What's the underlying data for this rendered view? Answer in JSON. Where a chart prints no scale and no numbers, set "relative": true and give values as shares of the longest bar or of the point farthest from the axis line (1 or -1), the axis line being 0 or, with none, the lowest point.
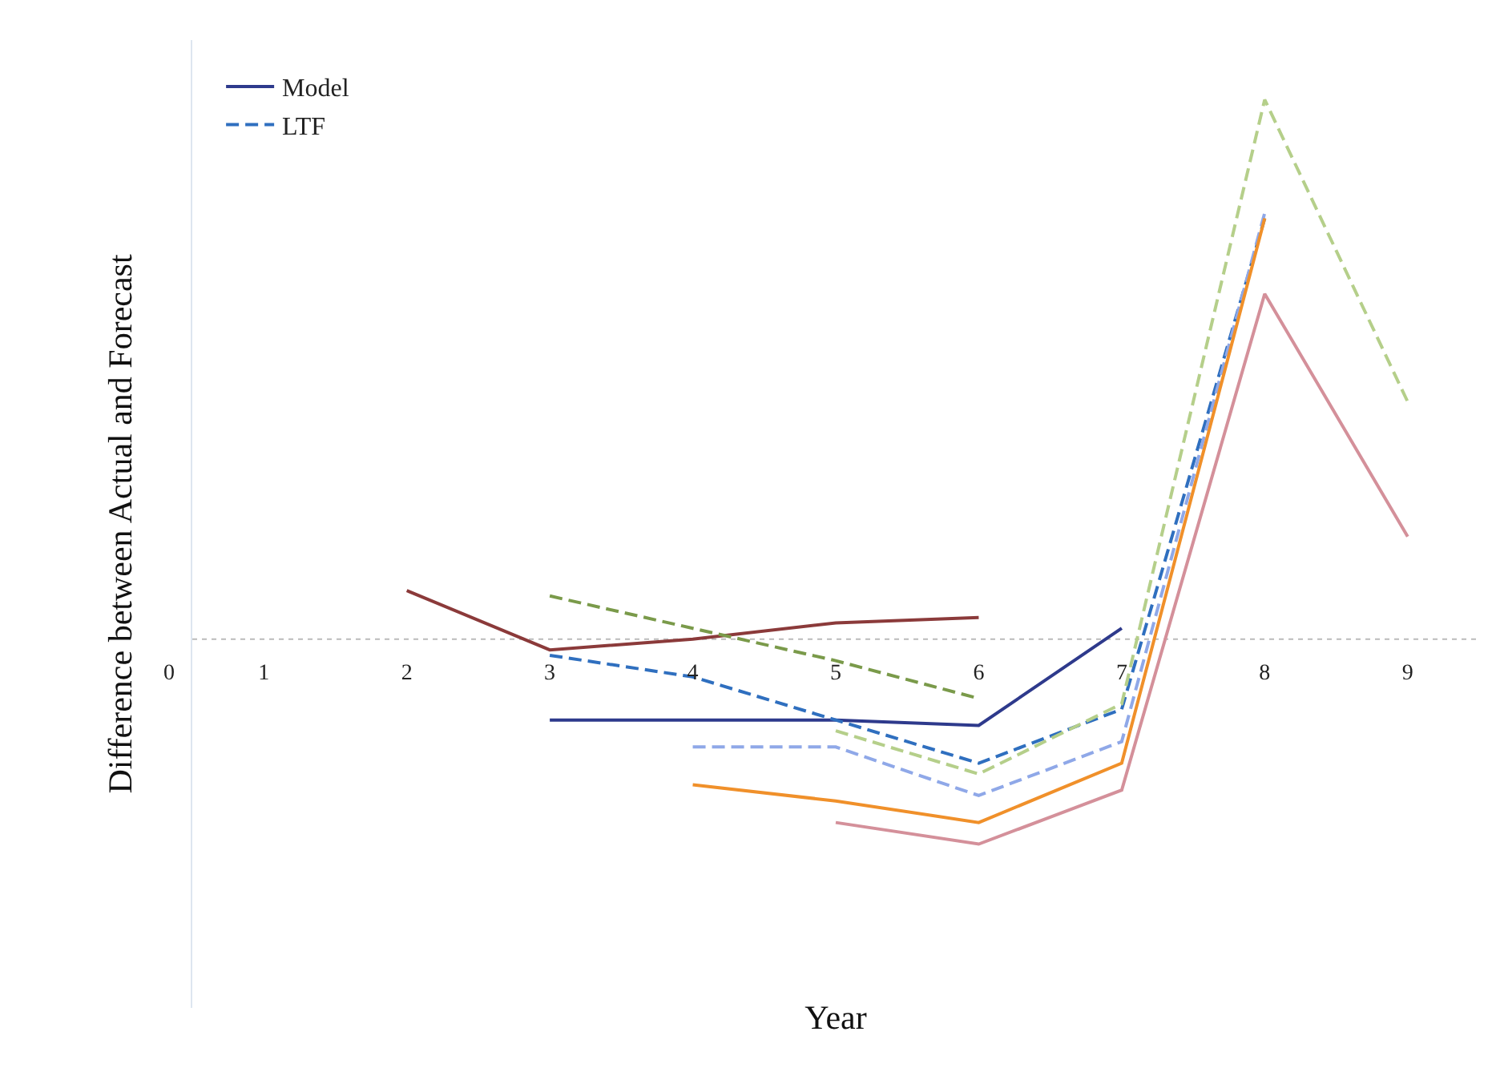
{
  "chart_data": {
    "type": "line",
    "relative": true,
    "xlabel": "Year",
    "ylabel": "Difference between Actual and Forecast",
    "x": [
      2,
      3,
      4,
      5,
      6,
      7,
      8,
      9
    ],
    "xlim": [
      0.5,
      9.5
    ],
    "xticks": [
      1,
      2,
      3,
      4,
      5,
      6,
      7,
      8,
      9
    ],
    "grid": false,
    "legend": "top left",
    "marker": "none",
    "annotations": [
      "0"
    ],
    "ref_lines": [
      {
        "axis": "y",
        "value": 0,
        "color": "#bbbbbb",
        "line_style": "dotted"
      }
    ],
    "series": [
      {
        "color": "#8b3a3a",
        "line_style": "solid",
        "values": [
          0.09,
          -0.02,
          0.0,
          0.03,
          0.04,
          null,
          null,
          null
        ]
      },
      {
        "name": "Model",
        "color": "#2e3a8c",
        "line_style": "solid",
        "values": [
          null,
          -0.15,
          -0.15,
          -0.15,
          -0.16,
          0.02,
          null,
          null
        ]
      },
      {
        "color": "#7a9a4a",
        "line_style": "dashed",
        "values": [
          null,
          0.08,
          0.02,
          -0.04,
          -0.11,
          null,
          null,
          null
        ]
      },
      {
        "name": "LTF",
        "color": "#2f6fbf",
        "line_style": "dashed",
        "values": [
          null,
          -0.03,
          -0.07,
          -0.15,
          -0.23,
          -0.13,
          0.78,
          null
        ]
      },
      {
        "color": "#b5cf8a",
        "line_style": "dashed",
        "values": [
          null,
          null,
          null,
          -0.17,
          -0.25,
          -0.12,
          1.0,
          0.44
        ]
      },
      {
        "color": "#8fa8e8",
        "line_style": "dashed",
        "values": [
          null,
          null,
          -0.2,
          -0.2,
          -0.29,
          -0.19,
          0.79,
          null
        ]
      },
      {
        "color": "#f0902a",
        "line_style": "solid",
        "values": [
          null,
          null,
          -0.27,
          -0.3,
          -0.34,
          -0.23,
          0.78,
          null
        ]
      },
      {
        "color": "#d4909a",
        "line_style": "solid",
        "values": [
          null,
          null,
          null,
          -0.34,
          -0.38,
          -0.28,
          0.64,
          0.19
        ]
      }
    ]
  }
}
